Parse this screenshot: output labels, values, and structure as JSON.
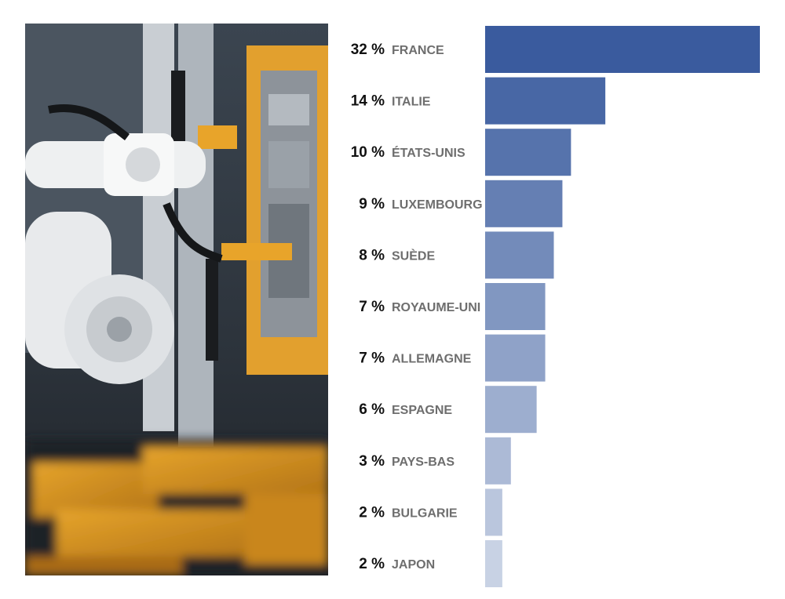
{
  "chart_data": {
    "type": "bar",
    "orientation": "horizontal",
    "categories": [
      "FRANCE",
      "ITALIE",
      "ÉTATS-UNIS",
      "LUXEMBOURG",
      "SUÈDE",
      "ROYAUME-UNI",
      "ALLEMAGNE",
      "ESPAGNE",
      "PAYS-BAS",
      "BULGARIE",
      "JAPON"
    ],
    "values": [
      32,
      14,
      10,
      9,
      8,
      7,
      7,
      6,
      3,
      2,
      2
    ],
    "value_labels": [
      "32 %",
      "14 %",
      "10 %",
      "9 %",
      "8 %",
      "7 %",
      "7 %",
      "6 %",
      "3 %",
      "2 %",
      "2 %"
    ],
    "xlim": [
      0,
      32
    ],
    "bar_color_start": "#3a5b9e",
    "bar_color_end": "#c8d2e4",
    "grid": false,
    "legend": "none"
  },
  "image": {
    "subject": "industrial-robot-arm-photo"
  }
}
